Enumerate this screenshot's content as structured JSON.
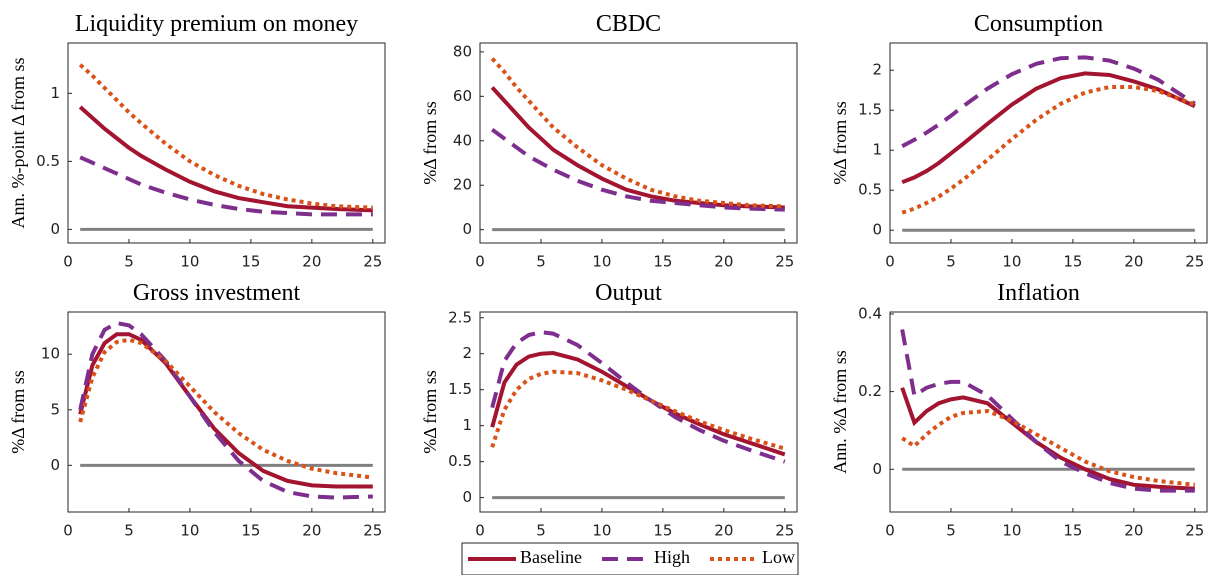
{
  "chart_data": [
    {
      "type": "line",
      "title": "Liquidity premium on money",
      "y_label": "Ann. %-point Δ from ss",
      "x": [
        1,
        2,
        3,
        4,
        5,
        6,
        8,
        10,
        12,
        14,
        16,
        18,
        20,
        22,
        25
      ],
      "xlim": [
        0,
        26
      ],
      "xticks": [
        0,
        5,
        10,
        15,
        20,
        25
      ],
      "ylim": [
        -0.1,
        1.37
      ],
      "yticks": [
        0,
        0.5,
        1
      ],
      "hline": 0,
      "series": [
        {
          "color": "#a2142f",
          "dash": "solid",
          "values": [
            0.9,
            0.82,
            0.74,
            0.67,
            0.6,
            0.54,
            0.44,
            0.35,
            0.28,
            0.23,
            0.2,
            0.17,
            0.16,
            0.15,
            0.14
          ]
        },
        {
          "color": "#7e2f8e",
          "dash": "dashed",
          "values": [
            0.53,
            0.49,
            0.45,
            0.41,
            0.37,
            0.33,
            0.27,
            0.22,
            0.18,
            0.15,
            0.13,
            0.12,
            0.11,
            0.11,
            0.11
          ]
        },
        {
          "color": "#d95319",
          "dash": "dotted",
          "values": [
            1.21,
            1.13,
            1.04,
            0.95,
            0.86,
            0.78,
            0.63,
            0.5,
            0.4,
            0.32,
            0.26,
            0.22,
            0.19,
            0.17,
            0.16
          ]
        }
      ]
    },
    {
      "type": "line",
      "title": "CBDC",
      "y_label": "%Δ from ss",
      "x": [
        1,
        2,
        3,
        4,
        5,
        6,
        8,
        10,
        12,
        14,
        16,
        18,
        20,
        22,
        25
      ],
      "xlim": [
        0,
        26
      ],
      "xticks": [
        0,
        5,
        10,
        15,
        20,
        25
      ],
      "ylim": [
        -6,
        84
      ],
      "yticks": [
        0,
        20,
        40,
        60,
        80
      ],
      "hline": 0,
      "series": [
        {
          "color": "#a2142f",
          "dash": "solid",
          "values": [
            64,
            58,
            52,
            46,
            41,
            36,
            29,
            23,
            18,
            15,
            13,
            12,
            11,
            10.5,
            10
          ]
        },
        {
          "color": "#7e2f8e",
          "dash": "dashed",
          "values": [
            45,
            41,
            37,
            33,
            30,
            27,
            22,
            18,
            15,
            13,
            12,
            11,
            10,
            9.5,
            9
          ]
        },
        {
          "color": "#d95319",
          "dash": "dotted",
          "values": [
            77,
            71,
            64,
            58,
            52,
            46,
            37,
            29,
            23,
            18,
            15,
            13,
            12,
            11,
            10.5
          ]
        }
      ]
    },
    {
      "type": "line",
      "title": "Consumption",
      "y_label": "%Δ from ss",
      "x": [
        1,
        2,
        3,
        4,
        5,
        6,
        8,
        10,
        12,
        14,
        16,
        18,
        20,
        22,
        25
      ],
      "xlim": [
        0,
        26
      ],
      "xticks": [
        0,
        5,
        10,
        15,
        20,
        25
      ],
      "ylim": [
        -0.16,
        2.34
      ],
      "yticks": [
        0,
        0.5,
        1,
        1.5,
        2
      ],
      "hline": 0,
      "series": [
        {
          "color": "#a2142f",
          "dash": "solid",
          "values": [
            0.6,
            0.66,
            0.74,
            0.84,
            0.96,
            1.08,
            1.33,
            1.57,
            1.77,
            1.9,
            1.96,
            1.94,
            1.86,
            1.76,
            1.55
          ]
        },
        {
          "color": "#7e2f8e",
          "dash": "dashed",
          "values": [
            1.05,
            1.13,
            1.22,
            1.32,
            1.43,
            1.55,
            1.77,
            1.95,
            2.08,
            2.15,
            2.16,
            2.12,
            2.02,
            1.88,
            1.58
          ]
        },
        {
          "color": "#d95319",
          "dash": "dotted",
          "values": [
            0.22,
            0.27,
            0.34,
            0.42,
            0.52,
            0.63,
            0.88,
            1.14,
            1.38,
            1.58,
            1.72,
            1.79,
            1.79,
            1.74,
            1.57
          ]
        }
      ]
    },
    {
      "type": "line",
      "title": "Gross investment",
      "y_label": "%Δ from ss",
      "x": [
        1,
        2,
        3,
        4,
        5,
        6,
        8,
        10,
        12,
        14,
        16,
        18,
        20,
        22,
        25
      ],
      "xlim": [
        0,
        26
      ],
      "xticks": [
        0,
        5,
        10,
        15,
        20,
        25
      ],
      "ylim": [
        -4.2,
        13.8
      ],
      "yticks": [
        0,
        5,
        10
      ],
      "hline": 0,
      "series": [
        {
          "color": "#a2142f",
          "dash": "solid",
          "values": [
            4.6,
            9,
            11,
            11.8,
            11.8,
            11.3,
            9.2,
            6.2,
            3.3,
            1.1,
            -0.5,
            -1.4,
            -1.8,
            -1.9,
            -1.9
          ]
        },
        {
          "color": "#7e2f8e",
          "dash": "dashed",
          "values": [
            5,
            10,
            12.2,
            12.8,
            12.6,
            11.8,
            9.4,
            6.2,
            3,
            0.4,
            -1.4,
            -2.4,
            -2.8,
            -2.9,
            -2.8
          ]
        },
        {
          "color": "#d95319",
          "dash": "dotted",
          "values": [
            3.9,
            7.9,
            10.2,
            11.1,
            11.3,
            11,
            9.4,
            7.1,
            4.8,
            2.9,
            1.4,
            0.4,
            -0.3,
            -0.7,
            -1.1
          ]
        }
      ]
    },
    {
      "type": "line",
      "title": "Output",
      "y_label": "%Δ from ss",
      "x": [
        1,
        2,
        3,
        4,
        5,
        6,
        8,
        10,
        12,
        14,
        16,
        18,
        20,
        22,
        25
      ],
      "xlim": [
        0,
        26
      ],
      "xticks": [
        0,
        5,
        10,
        15,
        20,
        25
      ],
      "ylim": [
        -0.2,
        2.58
      ],
      "yticks": [
        0,
        0.5,
        1,
        1.5,
        2,
        2.5
      ],
      "hline": 0,
      "legend": "below",
      "series": [
        {
          "name": "Baseline",
          "color": "#a2142f",
          "dash": "solid",
          "values": [
            0.98,
            1.6,
            1.85,
            1.96,
            2.0,
            2.01,
            1.92,
            1.75,
            1.55,
            1.35,
            1.17,
            1.02,
            0.88,
            0.77,
            0.6
          ]
        },
        {
          "name": "High",
          "color": "#7e2f8e",
          "dash": "dashed",
          "values": [
            1.25,
            1.9,
            2.15,
            2.26,
            2.3,
            2.28,
            2.12,
            1.87,
            1.6,
            1.35,
            1.12,
            0.94,
            0.79,
            0.67,
            0.5
          ]
        },
        {
          "name": "Low",
          "color": "#d95319",
          "dash": "dotted",
          "values": [
            0.7,
            1.22,
            1.5,
            1.65,
            1.72,
            1.75,
            1.73,
            1.63,
            1.5,
            1.35,
            1.2,
            1.06,
            0.94,
            0.83,
            0.68
          ]
        }
      ]
    },
    {
      "type": "line",
      "title": "Inflation",
      "y_label": "Ann. %Δ from ss",
      "x": [
        1,
        2,
        3,
        4,
        5,
        6,
        8,
        10,
        12,
        14,
        16,
        18,
        20,
        22,
        25
      ],
      "xlim": [
        0,
        26
      ],
      "xticks": [
        0,
        5,
        10,
        15,
        20,
        25
      ],
      "ylim": [
        -0.11,
        0.405
      ],
      "yticks": [
        0,
        0.2,
        0.4
      ],
      "hline": 0,
      "series": [
        {
          "color": "#a2142f",
          "dash": "solid",
          "values": [
            0.21,
            0.12,
            0.15,
            0.17,
            0.18,
            0.185,
            0.17,
            0.12,
            0.07,
            0.03,
            0.0,
            -0.025,
            -0.04,
            -0.045,
            -0.05
          ]
        },
        {
          "color": "#7e2f8e",
          "dash": "dashed",
          "values": [
            0.36,
            0.19,
            0.21,
            0.22,
            0.225,
            0.225,
            0.19,
            0.13,
            0.07,
            0.02,
            -0.01,
            -0.035,
            -0.05,
            -0.055,
            -0.055
          ]
        },
        {
          "color": "#d95319",
          "dash": "dotted",
          "values": [
            0.08,
            0.06,
            0.09,
            0.115,
            0.135,
            0.145,
            0.15,
            0.125,
            0.09,
            0.055,
            0.02,
            -0.005,
            -0.02,
            -0.03,
            -0.04
          ]
        }
      ]
    }
  ]
}
